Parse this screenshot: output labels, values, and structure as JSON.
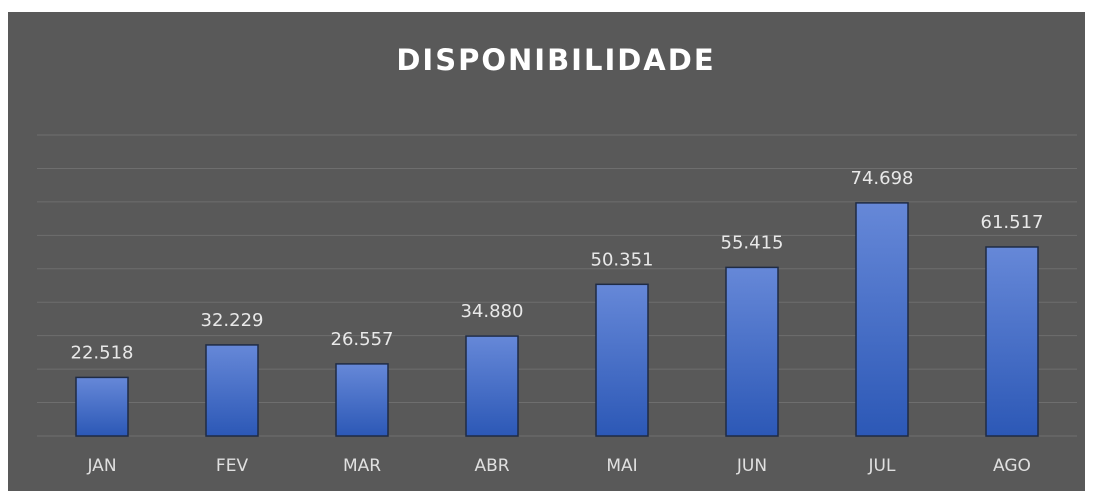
{
  "chart_data": {
    "type": "bar",
    "title": "DISPONIBILIDADE",
    "categories": [
      "JAN",
      "FEV",
      "MAR",
      "ABR",
      "MAI",
      "JUN",
      "JUL",
      "AGO"
    ],
    "values": [
      22518,
      32229,
      26557,
      34880,
      50351,
      55415,
      74698,
      61517
    ],
    "value_labels": [
      "22.518",
      "32.229",
      "26.557",
      "34.880",
      "50.351",
      "55.415",
      "74.698",
      "61.517"
    ],
    "color": "#4a72c8",
    "ylim": [
      5000,
      95000
    ],
    "yticks": [
      5000,
      15000,
      25000,
      35000,
      45000,
      55000,
      65000,
      75000,
      85000,
      95000
    ],
    "grid": true
  }
}
